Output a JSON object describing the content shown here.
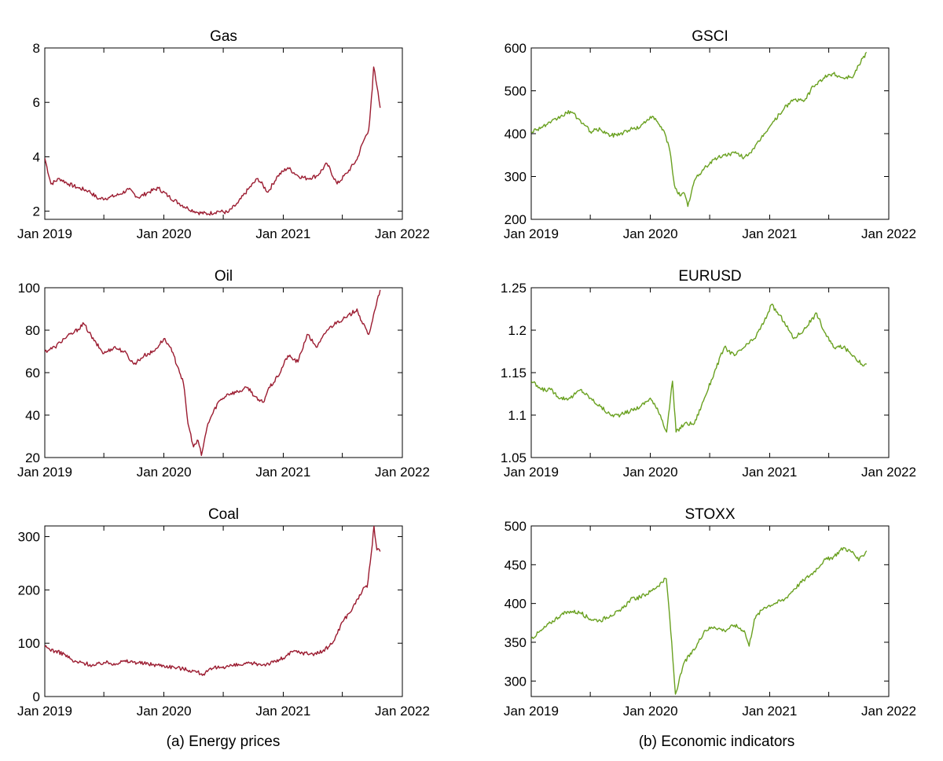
{
  "figure": {
    "colors": {
      "energy": "#9b1b30",
      "indicators": "#6aa121",
      "axis": "#000000"
    },
    "captions": [
      "(a) Energy prices",
      "(b) Economic indicators"
    ]
  },
  "chart_data": [
    {
      "type": "line",
      "title": "Gas",
      "xlabel": "",
      "ylabel": "",
      "color": "#9b1b30",
      "xlim": [
        "2019-01-01",
        "2022-01-01"
      ],
      "ylim": [
        1.7,
        8
      ],
      "x_ticks": [
        "Jan 2019",
        "Jan 2020",
        "Jan 2021",
        "Jan 2022"
      ],
      "y_ticks": [
        "2",
        "4",
        "6",
        "8"
      ],
      "y_tick_values": [
        2,
        4,
        6,
        8
      ],
      "x": [
        "2019-01-01",
        "2019-01-20",
        "2019-02-15",
        "2019-03-15",
        "2019-04-15",
        "2019-05-15",
        "2019-06-15",
        "2019-07-15",
        "2019-08-15",
        "2019-09-15",
        "2019-10-15",
        "2019-11-15",
        "2019-12-15",
        "2020-01-15",
        "2020-02-15",
        "2020-03-15",
        "2020-04-15",
        "2020-05-15",
        "2020-06-15",
        "2020-07-15",
        "2020-08-15",
        "2020-09-15",
        "2020-10-15",
        "2020-11-15",
        "2020-12-15",
        "2021-01-15",
        "2021-02-15",
        "2021-03-15",
        "2021-04-15",
        "2021-05-15",
        "2021-06-15",
        "2021-07-15",
        "2021-08-15",
        "2021-09-01",
        "2021-09-20",
        "2021-10-01",
        "2021-10-05",
        "2021-10-15",
        "2021-10-25"
      ],
      "y": [
        3.95,
        3.0,
        3.2,
        3.0,
        2.85,
        2.75,
        2.45,
        2.5,
        2.6,
        2.8,
        2.5,
        2.7,
        2.85,
        2.55,
        2.3,
        2.1,
        1.95,
        1.9,
        2.0,
        1.95,
        2.3,
        2.8,
        3.2,
        2.7,
        3.3,
        3.6,
        3.3,
        3.2,
        3.3,
        3.75,
        3.0,
        3.4,
        3.9,
        4.5,
        5.0,
        6.5,
        7.3,
        6.6,
        5.8
      ]
    },
    {
      "type": "line",
      "title": "Oil",
      "xlabel": "",
      "ylabel": "",
      "color": "#9b1b30",
      "xlim": [
        "2019-01-01",
        "2022-01-01"
      ],
      "ylim": [
        20,
        100
      ],
      "x_ticks": [
        "Jan 2019",
        "Jan 2020",
        "Jan 2021",
        "Jan 2022"
      ],
      "y_ticks": [
        "20",
        "40",
        "60",
        "80",
        "100"
      ],
      "y_tick_values": [
        20,
        40,
        60,
        80,
        100
      ],
      "x": [
        "2019-01-01",
        "2019-02-01",
        "2019-03-01",
        "2019-04-01",
        "2019-05-01",
        "2019-06-01",
        "2019-07-01",
        "2019-08-01",
        "2019-09-01",
        "2019-10-01",
        "2019-11-01",
        "2019-12-01",
        "2020-01-01",
        "2020-01-20",
        "2020-02-15",
        "2020-03-01",
        "2020-03-15",
        "2020-04-01",
        "2020-04-15",
        "2020-04-25",
        "2020-05-15",
        "2020-06-15",
        "2020-07-15",
        "2020-08-15",
        "2020-09-15",
        "2020-10-15",
        "2020-11-01",
        "2020-11-15",
        "2020-12-15",
        "2021-01-15",
        "2021-02-15",
        "2021-03-15",
        "2021-04-15",
        "2021-05-15",
        "2021-06-15",
        "2021-07-15",
        "2021-08-15",
        "2021-09-01",
        "2021-09-20",
        "2021-10-10",
        "2021-10-25"
      ],
      "y": [
        70,
        72,
        76,
        79,
        83,
        75,
        69,
        72,
        70,
        64,
        68,
        70,
        76,
        72,
        62,
        55,
        36,
        25,
        28,
        21,
        36,
        46,
        50,
        51,
        53,
        47,
        46,
        52,
        58,
        68,
        65,
        78,
        72,
        80,
        84,
        86,
        90,
        83,
        78,
        90,
        99
      ]
    },
    {
      "type": "line",
      "title": "Coal",
      "xlabel": "",
      "ylabel": "",
      "color": "#9b1b30",
      "xlim": [
        "2019-01-01",
        "2022-01-01"
      ],
      "ylim": [
        0,
        320
      ],
      "x_ticks": [
        "Jan 2019",
        "Jan 2020",
        "Jan 2021",
        "Jan 2022"
      ],
      "y_ticks": [
        "0",
        "100",
        "200",
        "300"
      ],
      "y_tick_values": [
        0,
        100,
        200,
        300
      ],
      "x": [
        "2019-01-01",
        "2019-02-01",
        "2019-03-01",
        "2019-04-01",
        "2019-05-01",
        "2019-06-01",
        "2019-07-01",
        "2019-08-01",
        "2019-09-01",
        "2019-10-01",
        "2019-11-01",
        "2019-12-01",
        "2020-01-01",
        "2020-02-01",
        "2020-03-01",
        "2020-04-01",
        "2020-05-01",
        "2020-06-01",
        "2020-07-01",
        "2020-08-01",
        "2020-09-01",
        "2020-10-01",
        "2020-11-01",
        "2020-12-01",
        "2021-01-01",
        "2021-02-01",
        "2021-03-01",
        "2021-04-01",
        "2021-05-01",
        "2021-06-01",
        "2021-07-01",
        "2021-08-01",
        "2021-09-01",
        "2021-09-15",
        "2021-10-01",
        "2021-10-06",
        "2021-10-15",
        "2021-10-25"
      ],
      "y": [
        93,
        85,
        80,
        65,
        63,
        58,
        64,
        62,
        66,
        65,
        62,
        60,
        58,
        55,
        52,
        48,
        42,
        53,
        56,
        58,
        60,
        62,
        60,
        64,
        72,
        85,
        82,
        80,
        84,
        100,
        140,
        165,
        200,
        205,
        285,
        320,
        275,
        272
      ]
    },
    {
      "type": "line",
      "title": "GSCI",
      "xlabel": "",
      "ylabel": "",
      "color": "#6aa121",
      "xlim": [
        "2019-01-01",
        "2022-01-01"
      ],
      "ylim": [
        200,
        600
      ],
      "x_ticks": [
        "Jan 2019",
        "Jan 2020",
        "Jan 2021",
        "Jan 2022"
      ],
      "y_ticks": [
        "200",
        "300",
        "400",
        "500",
        "600"
      ],
      "y_tick_values": [
        200,
        300,
        400,
        500,
        600
      ],
      "x": [
        "2019-01-01",
        "2019-02-01",
        "2019-03-01",
        "2019-04-01",
        "2019-05-01",
        "2019-06-01",
        "2019-07-01",
        "2019-08-01",
        "2019-09-01",
        "2019-10-01",
        "2019-11-01",
        "2019-12-01",
        "2020-01-01",
        "2020-01-20",
        "2020-02-15",
        "2020-03-01",
        "2020-03-15",
        "2020-04-01",
        "2020-04-15",
        "2020-04-25",
        "2020-05-15",
        "2020-06-15",
        "2020-07-15",
        "2020-08-15",
        "2020-09-15",
        "2020-10-15",
        "2020-11-15",
        "2020-12-15",
        "2021-01-15",
        "2021-02-15",
        "2021-03-15",
        "2021-04-15",
        "2021-05-15",
        "2021-06-15",
        "2021-07-15",
        "2021-08-15",
        "2021-09-15",
        "2021-10-01",
        "2021-10-25"
      ],
      "y": [
        405,
        415,
        425,
        440,
        452,
        430,
        405,
        410,
        395,
        400,
        410,
        415,
        440,
        430,
        400,
        360,
        280,
        255,
        260,
        230,
        290,
        320,
        340,
        350,
        355,
        345,
        365,
        400,
        430,
        460,
        480,
        475,
        510,
        530,
        540,
        530,
        535,
        560,
        590
      ]
    },
    {
      "type": "line",
      "title": "EURUSD",
      "xlabel": "",
      "ylabel": "",
      "color": "#6aa121",
      "xlim": [
        "2019-01-01",
        "2022-01-01"
      ],
      "ylim": [
        1.05,
        1.25
      ],
      "x_ticks": [
        "Jan 2019",
        "Jan 2020",
        "Jan 2021",
        "Jan 2022"
      ],
      "y_ticks": [
        "1.05",
        "1.1",
        "1.15",
        "1.2",
        "1.25"
      ],
      "y_tick_values": [
        1.05,
        1.1,
        1.15,
        1.2,
        1.25
      ],
      "x": [
        "2019-01-01",
        "2019-02-01",
        "2019-03-01",
        "2019-04-01",
        "2019-05-01",
        "2019-06-01",
        "2019-07-01",
        "2019-08-01",
        "2019-09-01",
        "2019-10-01",
        "2019-11-01",
        "2019-12-01",
        "2020-01-01",
        "2020-02-01",
        "2020-02-20",
        "2020-03-09",
        "2020-03-20",
        "2020-04-15",
        "2020-05-15",
        "2020-06-15",
        "2020-07-15",
        "2020-08-15",
        "2020-09-15",
        "2020-10-15",
        "2020-11-15",
        "2020-12-15",
        "2021-01-06",
        "2021-02-15",
        "2021-03-15",
        "2021-04-15",
        "2021-05-25",
        "2021-06-15",
        "2021-07-15",
        "2021-08-15",
        "2021-09-15",
        "2021-10-10",
        "2021-10-25"
      ],
      "y": [
        1.14,
        1.13,
        1.13,
        1.12,
        1.12,
        1.13,
        1.12,
        1.11,
        1.1,
        1.1,
        1.105,
        1.11,
        1.12,
        1.1,
        1.08,
        1.14,
        1.08,
        1.09,
        1.09,
        1.12,
        1.15,
        1.18,
        1.17,
        1.18,
        1.19,
        1.21,
        1.23,
        1.21,
        1.19,
        1.2,
        1.22,
        1.2,
        1.18,
        1.18,
        1.17,
        1.16,
        1.16
      ]
    },
    {
      "type": "line",
      "title": "STOXX",
      "xlabel": "",
      "ylabel": "",
      "color": "#6aa121",
      "xlim": [
        "2019-01-01",
        "2022-01-01"
      ],
      "ylim": [
        280,
        500
      ],
      "x_ticks": [
        "Jan 2019",
        "Jan 2020",
        "Jan 2021",
        "Jan 2022"
      ],
      "y_ticks": [
        "300",
        "350",
        "400",
        "450",
        "500"
      ],
      "y_tick_values": [
        300,
        350,
        400,
        450,
        500
      ],
      "x": [
        "2019-01-01",
        "2019-02-01",
        "2019-03-01",
        "2019-04-01",
        "2019-05-01",
        "2019-06-01",
        "2019-07-01",
        "2019-08-01",
        "2019-09-01",
        "2019-10-01",
        "2019-11-01",
        "2019-12-01",
        "2020-01-01",
        "2020-02-19",
        "2020-03-01",
        "2020-03-18",
        "2020-04-15",
        "2020-05-15",
        "2020-06-15",
        "2020-07-15",
        "2020-08-15",
        "2020-09-15",
        "2020-10-15",
        "2020-10-30",
        "2020-11-15",
        "2020-12-15",
        "2021-01-15",
        "2021-02-15",
        "2021-03-15",
        "2021-04-15",
        "2021-05-15",
        "2021-06-15",
        "2021-07-15",
        "2021-08-15",
        "2021-09-15",
        "2021-10-01",
        "2021-10-25"
      ],
      "y": [
        355,
        365,
        375,
        385,
        390,
        388,
        380,
        378,
        385,
        390,
        405,
        408,
        415,
        432,
        380,
        283,
        325,
        340,
        365,
        370,
        365,
        372,
        365,
        345,
        380,
        395,
        400,
        405,
        418,
        430,
        440,
        455,
        460,
        472,
        465,
        455,
        468
      ]
    }
  ]
}
